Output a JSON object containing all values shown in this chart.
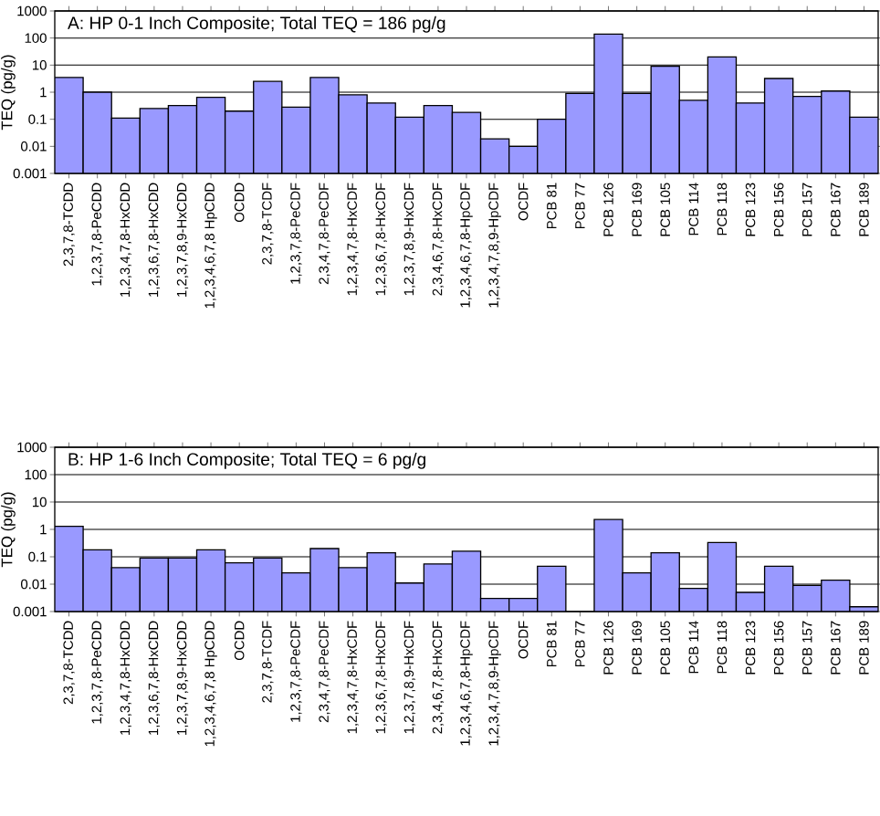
{
  "chart_data": [
    {
      "type": "bar",
      "title": "A:  HP 0-1 Inch Composite; Total TEQ = 186 pg/g",
      "ylabel": "TEQ (pg/g)",
      "categories": [
        "2,3,7,8-TCDD",
        "1,2,3,7,8-PeCDD",
        "1,2,3,4,7,8-HxCDD",
        "1,2,3,6,7,8-HxCDD",
        "1,2,3,7,8,9-HxCDD",
        "1,2,3,4,6,7,8 HpCDD",
        "OCDD",
        "2,3,7,8-TCDF",
        "1,2,3,7,8-PeCDF",
        "2,3,4,7,8-PeCDF",
        "1,2,3,4,7,8-HxCDF",
        "1,2,3,6,7,8-HxCDF",
        "1,2,3,7,8,9-HxCDF",
        "2,3,4,6,7,8-HxCDF",
        "1,2,3,4,6,7,8-HpCDF",
        "1,2,3,4,7,8,9-HpCDF",
        "OCDF",
        "PCB 81",
        "PCB 77",
        "PCB 126",
        "PCB 169",
        "PCB 105",
        "PCB 114",
        "PCB 118",
        "PCB 123",
        "PCB 156",
        "PCB 157",
        "PCB 167",
        "PCB 189"
      ],
      "values": [
        3.5,
        1.0,
        0.11,
        0.25,
        0.32,
        0.65,
        0.2,
        2.5,
        0.28,
        3.5,
        0.8,
        0.4,
        0.12,
        0.32,
        0.18,
        0.019,
        0.01,
        0.1,
        0.9,
        140,
        0.9,
        9,
        0.5,
        20,
        0.4,
        3.2,
        0.7,
        1.1,
        0.12
      ],
      "color": "#9999ff",
      "ylim": [
        0.001,
        1000
      ],
      "yticks": [
        0.001,
        0.01,
        0.1,
        1,
        10,
        100,
        1000
      ],
      "log": "y",
      "grid": "y"
    },
    {
      "type": "bar",
      "title": "B:  HP 1-6 Inch Composite; Total TEQ = 6 pg/g",
      "ylabel": "TEQ (pg/g)",
      "categories": [
        "2,3,7,8-TCDD",
        "1,2,3,7,8-PeCDD",
        "1,2,3,4,7,8-HxCDD",
        "1,2,3,6,7,8-HxCDD",
        "1,2,3,7,8,9-HxCDD",
        "1,2,3,4,6,7,8 HpCDD",
        "OCDD",
        "2,3,7,8-TCDF",
        "1,2,3,7,8-PeCDF",
        "2,3,4,7,8-PeCDF",
        "1,2,3,4,7,8-HxCDF",
        "1,2,3,6,7,8-HxCDF",
        "1,2,3,7,8,9-HxCDF",
        "2,3,4,6,7,8-HxCDF",
        "1,2,3,4,6,7,8-HpCDF",
        "1,2,3,4,7,8,9-HpCDF",
        "OCDF",
        "PCB 81",
        "PCB 77",
        "PCB 126",
        "PCB 169",
        "PCB 105",
        "PCB 114",
        "PCB 118",
        "PCB 123",
        "PCB 156",
        "PCB 157",
        "PCB 167",
        "PCB 189"
      ],
      "values": [
        1.3,
        0.18,
        0.04,
        0.09,
        0.09,
        0.18,
        0.06,
        0.09,
        0.026,
        0.2,
        0.04,
        0.14,
        0.011,
        0.055,
        0.16,
        0.003,
        0.003,
        0.045,
        null,
        2.3,
        0.026,
        0.14,
        0.007,
        0.33,
        0.005,
        0.045,
        0.009,
        0.014,
        0.0015
      ],
      "color": "#9999ff",
      "ylim": [
        0.001,
        1000
      ],
      "yticks": [
        0.001,
        0.01,
        0.1,
        1,
        10,
        100,
        1000
      ],
      "log": "y",
      "grid": "y"
    }
  ]
}
